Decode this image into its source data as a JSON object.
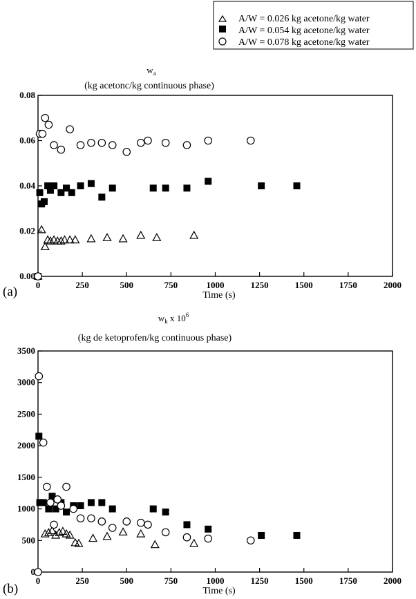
{
  "legend": {
    "entries": [
      {
        "marker": "open-triangle",
        "label": "A/W = 0.026 kg acetone/kg water"
      },
      {
        "marker": "filled-square",
        "label": "A/W = 0.054 kg acetone/kg water"
      },
      {
        "marker": "open-circle",
        "label": "A/W = 0.078 kg acetone/kg water"
      }
    ]
  },
  "panels": [
    {
      "tag": "(a)",
      "ylabel_main": "w",
      "ylabel_sub": "a",
      "ylabel_units": "(kg acetonc/kg continuous phase)",
      "xlabel": "Time (s)"
    },
    {
      "tag": "(b)",
      "ylabel_main": "w",
      "ylabel_sub": "k",
      "ylabel_mult": " x 10",
      "ylabel_exp": "6",
      "ylabel_units": "(kg de ketoprofen/kg continuous phase)",
      "xlabel": "Time (s)"
    }
  ],
  "chart_data": [
    {
      "type": "scatter",
      "xlabel": "Time (s)",
      "ylabel": "wa (kg acetonc/kg continuous phase)",
      "xlim": [
        0,
        2000
      ],
      "ylim": [
        0,
        0.08
      ],
      "xticks": [
        "0",
        "250",
        "500",
        "750",
        "1000",
        "1250",
        "1500",
        "1750",
        "2000"
      ],
      "yticks": [
        "0.00",
        "0.02",
        "0.04",
        "0.06",
        "0.08"
      ],
      "grid": false,
      "series": [
        {
          "name": "A/W = 0.026 kg acetone/kg water",
          "marker": "open-triangle",
          "x": [
            0,
            20,
            40,
            55,
            70,
            90,
            110,
            130,
            150,
            180,
            210,
            300,
            390,
            480,
            580,
            670,
            880
          ],
          "y": [
            0,
            0.0205,
            0.013,
            0.016,
            0.0155,
            0.016,
            0.0155,
            0.0155,
            0.016,
            0.016,
            0.016,
            0.0165,
            0.017,
            0.0165,
            0.018,
            0.017,
            0.018
          ]
        },
        {
          "name": "A/W = 0.054 kg acetone/kg water",
          "marker": "filled-square",
          "x": [
            0,
            10,
            20,
            35,
            55,
            70,
            90,
            130,
            160,
            190,
            240,
            300,
            360,
            420,
            650,
            720,
            840,
            960,
            1260,
            1460
          ],
          "y": [
            0,
            0.037,
            0.032,
            0.033,
            0.04,
            0.038,
            0.04,
            0.037,
            0.039,
            0.037,
            0.04,
            0.041,
            0.035,
            0.039,
            0.039,
            0.039,
            0.039,
            0.042,
            0.04,
            0.04
          ],
          "note": "first x also at 0"
        },
        {
          "name": "A/W = 0.078 kg acetone/kg water",
          "marker": "open-circle",
          "x": [
            0,
            10,
            25,
            40,
            60,
            90,
            130,
            180,
            240,
            300,
            360,
            420,
            500,
            580,
            620,
            720,
            840,
            960,
            1200
          ],
          "y": [
            0,
            0.063,
            0.063,
            0.07,
            0.067,
            0.058,
            0.056,
            0.065,
            0.058,
            0.059,
            0.059,
            0.058,
            0.055,
            0.059,
            0.06,
            0.059,
            0.058,
            0.06,
            0.06
          ]
        }
      ]
    },
    {
      "type": "scatter",
      "xlabel": "Time (s)",
      "ylabel": "wk x 10^6 (kg de ketoprofen/kg continuous phase)",
      "xlim": [
        0,
        2000
      ],
      "ylim": [
        0,
        3500
      ],
      "xticks": [
        "0",
        "250",
        "500",
        "750",
        "1000",
        "1250",
        "1500",
        "1750",
        "2000"
      ],
      "yticks": [
        "0",
        "500",
        "1000",
        "1500",
        "2000",
        "2500",
        "3000",
        "3500"
      ],
      "grid": false,
      "series": [
        {
          "name": "A/W = 0.026 kg acetone/kg water",
          "marker": "open-triangle",
          "x": [
            40,
            60,
            80,
            100,
            120,
            140,
            160,
            180,
            210,
            230,
            310,
            390,
            480,
            580,
            660,
            880
          ],
          "y": [
            600,
            620,
            650,
            580,
            620,
            640,
            600,
            580,
            460,
            450,
            530,
            560,
            630,
            600,
            430,
            450
          ]
        },
        {
          "name": "A/W = 0.054 kg acetone/kg water",
          "marker": "filled-square",
          "x": [
            5,
            10,
            30,
            60,
            80,
            100,
            130,
            160,
            200,
            240,
            300,
            360,
            420,
            650,
            720,
            840,
            960,
            1260,
            1460
          ],
          "y": [
            2150,
            1100,
            1100,
            1000,
            1200,
            1000,
            1100,
            950,
            1050,
            1050,
            1100,
            1100,
            1000,
            1000,
            950,
            750,
            680,
            580,
            580
          ]
        },
        {
          "name": "A/W = 0.078 kg acetone/kg water",
          "marker": "open-circle",
          "x": [
            0,
            5,
            30,
            50,
            70,
            90,
            110,
            130,
            160,
            200,
            240,
            300,
            360,
            420,
            500,
            580,
            620,
            720,
            840,
            960,
            1200
          ],
          "y": [
            0,
            3100,
            2050,
            1350,
            1100,
            750,
            1150,
            1050,
            1350,
            1000,
            850,
            850,
            800,
            700,
            800,
            780,
            750,
            630,
            550,
            530,
            500
          ]
        }
      ]
    }
  ]
}
